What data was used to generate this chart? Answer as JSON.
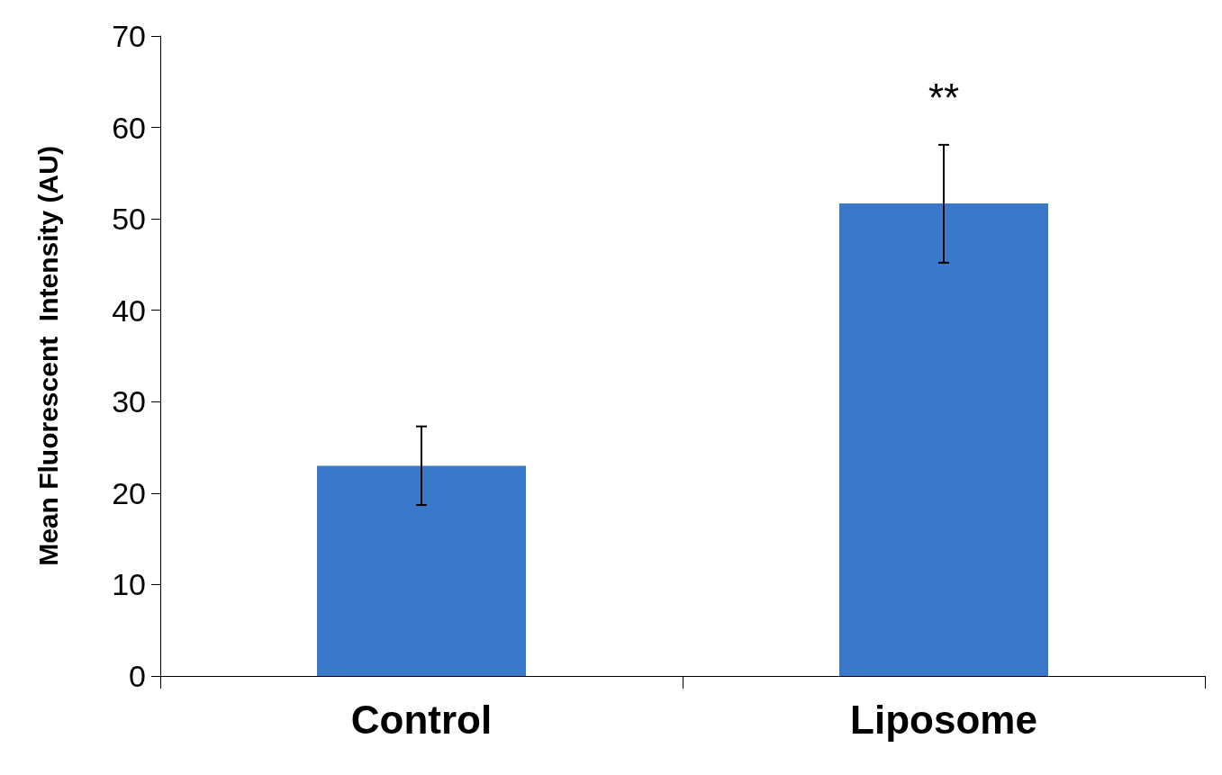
{
  "chart_data": {
    "type": "bar",
    "ylabel": "Mean Fluorescent  Intensity (AU)",
    "categories": [
      "Control",
      "Liposome"
    ],
    "values": [
      23,
      51.7
    ],
    "errors": [
      [
        18.7,
        27.3
      ],
      [
        45.2,
        58.1
      ]
    ],
    "color": "#3a78c9",
    "ylim": [
      0,
      70
    ],
    "yticks": [
      0,
      10,
      20,
      30,
      40,
      50,
      60,
      70
    ],
    "grid": false,
    "annotations": [
      "**"
    ]
  }
}
